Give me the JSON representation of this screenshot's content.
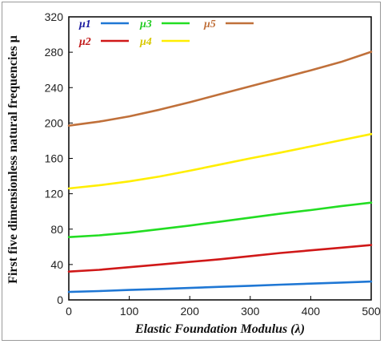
{
  "chart_data": {
    "type": "line",
    "xlabel": "Elastic Foundation Modulus (λ)",
    "ylabel": "First five dimensionless natural frequencies μ",
    "xlim": [
      0,
      500
    ],
    "ylim": [
      0,
      320
    ],
    "xticks": [
      0,
      100,
      200,
      300,
      400,
      500
    ],
    "yticks": [
      0,
      40,
      80,
      120,
      160,
      200,
      240,
      280,
      320
    ],
    "grid": false,
    "legend_position": "top-left",
    "x": [
      0,
      50,
      100,
      150,
      200,
      250,
      300,
      350,
      400,
      450,
      500
    ],
    "series": [
      {
        "name": "μ1",
        "color": "#1f77d4",
        "label_color": "#1a1aa0",
        "values": [
          9,
          10,
          11.2,
          12.3,
          13.5,
          14.8,
          16,
          17.2,
          18.4,
          19.6,
          20.8
        ]
      },
      {
        "name": "μ2",
        "color": "#d01818",
        "label_color": "#c01818",
        "values": [
          32,
          34,
          37,
          40,
          43,
          46,
          49.5,
          53,
          56,
          59,
          62
        ]
      },
      {
        "name": "μ3",
        "color": "#22dd22",
        "label_color": "#22cc22",
        "values": [
          71,
          73,
          76,
          80,
          84,
          88.5,
          93,
          97.5,
          101.5,
          106,
          110
        ]
      },
      {
        "name": "μ4",
        "color": "#ffee00",
        "label_color": "#d8c800",
        "values": [
          126,
          129.5,
          134,
          139.5,
          146,
          153,
          160,
          166.5,
          173.5,
          180.5,
          187.5
        ]
      },
      {
        "name": "μ5",
        "color": "#c0703a",
        "label_color": "#c0703a",
        "values": [
          197,
          201.5,
          207.5,
          215,
          223.5,
          232.5,
          241.5,
          250.5,
          259.5,
          269,
          280.5
        ]
      }
    ]
  }
}
